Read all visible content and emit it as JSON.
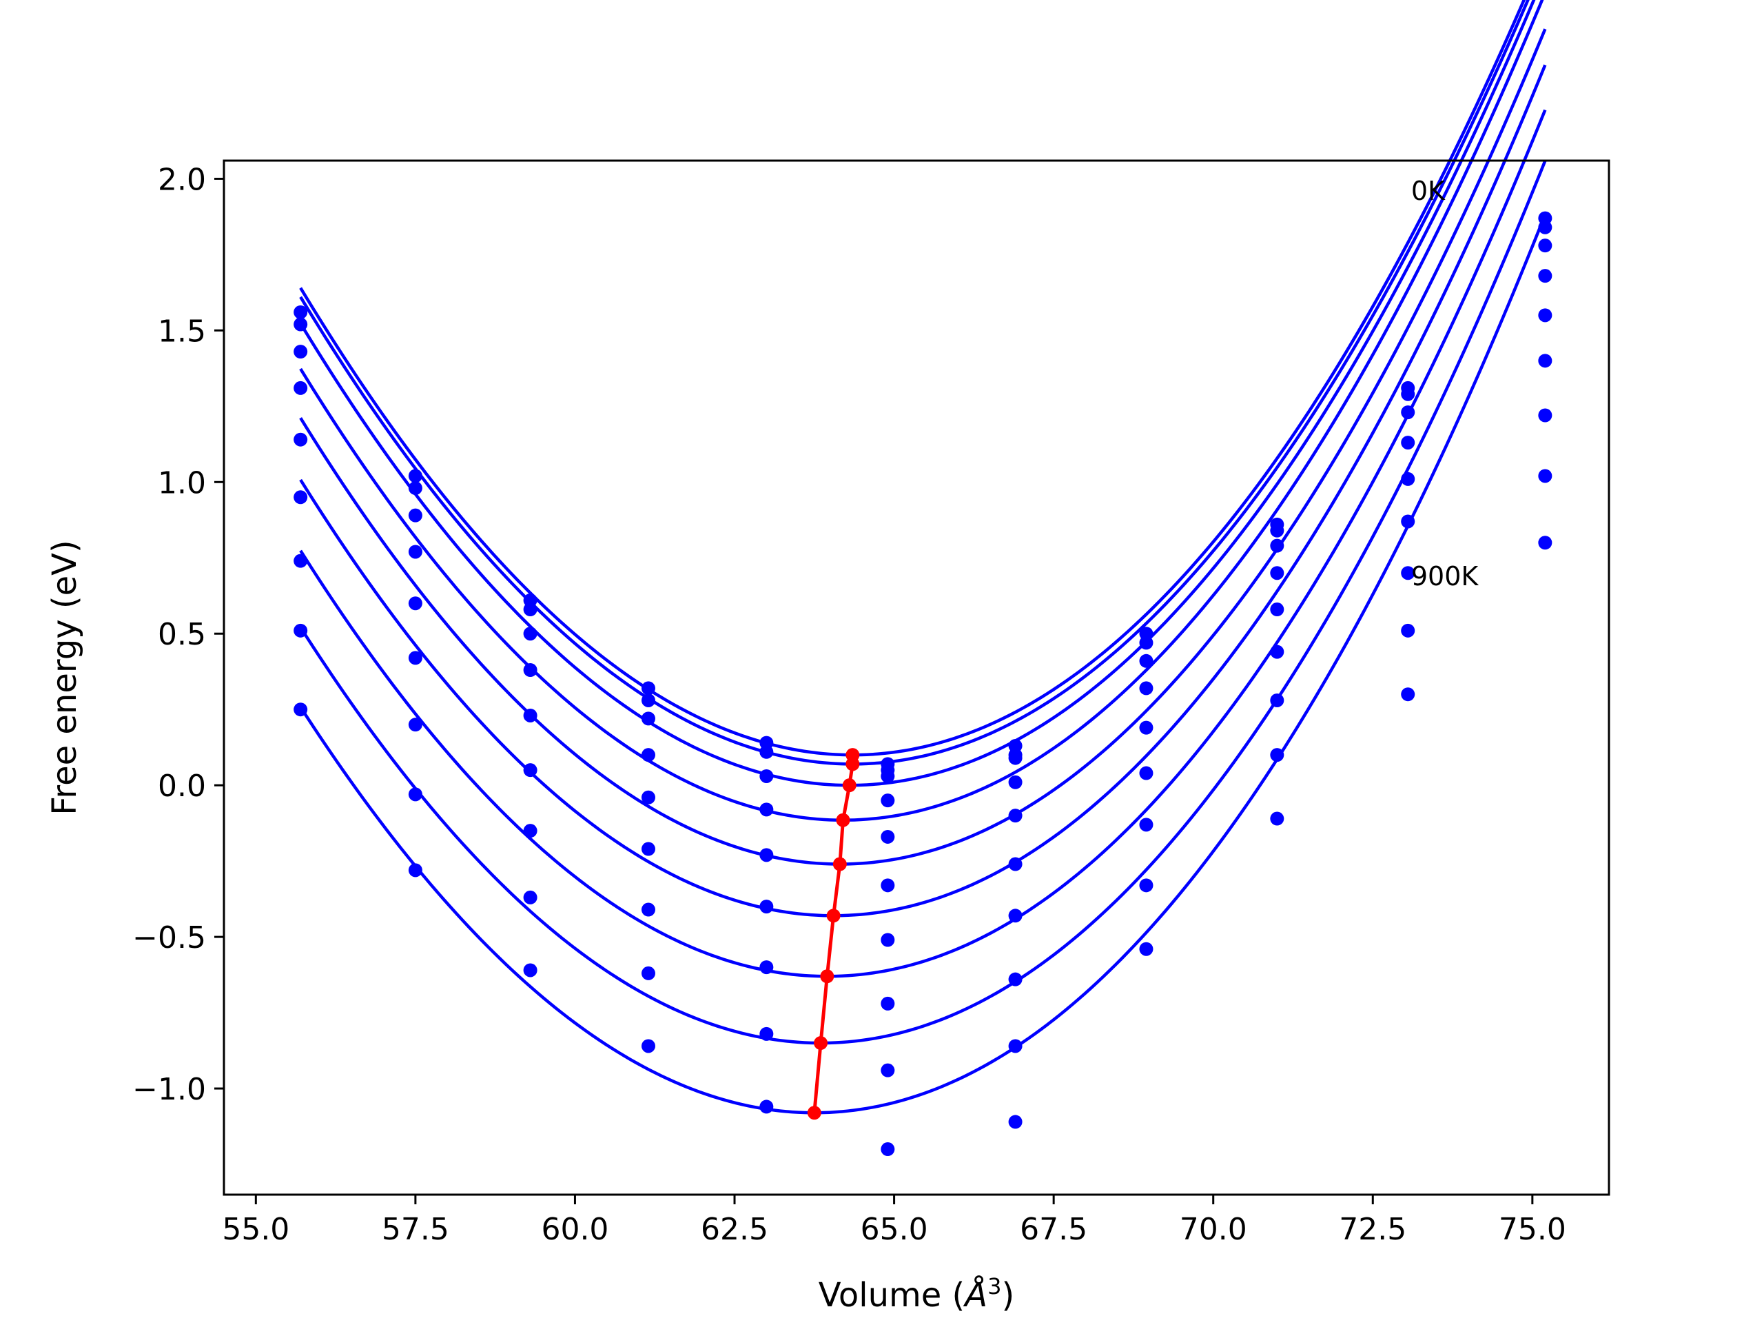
{
  "chart_data": {
    "type": "scatter",
    "title": "",
    "xlabel_main": "Volume (",
    "xlabel_unit": "Å",
    "xlabel_exp": "3",
    "xlabel_close": ")",
    "ylabel": "Free energy (eV)",
    "xlim": [
      54.5,
      76.2
    ],
    "ylim": [
      -1.35,
      2.06
    ],
    "xticks": [
      55.0,
      57.5,
      60.0,
      62.5,
      65.0,
      67.5,
      70.0,
      72.5,
      75.0
    ],
    "xtick_labels": [
      "55.0",
      "57.5",
      "60.0",
      "62.5",
      "65.0",
      "67.5",
      "70.0",
      "72.5",
      "75.0"
    ],
    "yticks": [
      -1.0,
      -0.5,
      0.0,
      0.5,
      1.0,
      1.5,
      2.0
    ],
    "ytick_labels": [
      "−1.0",
      "−0.5",
      "0.0",
      "0.5",
      "1.0",
      "1.5",
      "2.0"
    ],
    "grid": false,
    "legend": "none",
    "colors": {
      "series": "#0000ff",
      "minima": "#ff0000"
    },
    "annotations": [
      {
        "text": "0K",
        "x": 73.1,
        "y": 1.93
      },
      {
        "text": "900K",
        "x": 73.1,
        "y": 0.66
      }
    ],
    "volumes": [
      55.7,
      57.5,
      59.3,
      61.15,
      63.0,
      64.9,
      66.9,
      68.95,
      71.0,
      73.05,
      75.2
    ],
    "fit_curves": [
      {
        "min_x": 64.35,
        "min_y": 0.1,
        "k": 0.02145,
        "c": 0.0001
      },
      {
        "min_x": 64.35,
        "min_y": 0.07,
        "k": 0.02145,
        "c": 0.0001
      },
      {
        "min_x": 64.3,
        "min_y": 0.0,
        "k": 0.02145,
        "c": 0.0001
      },
      {
        "min_x": 64.2,
        "min_y": -0.115,
        "k": 0.02145,
        "c": 0.0001
      },
      {
        "min_x": 64.15,
        "min_y": -0.26,
        "k": 0.02145,
        "c": 0.0001
      },
      {
        "min_x": 64.05,
        "min_y": -0.43,
        "k": 0.02145,
        "c": 0.0001
      },
      {
        "min_x": 63.95,
        "min_y": -0.63,
        "k": 0.02145,
        "c": 0.0001
      },
      {
        "min_x": 63.85,
        "min_y": -0.85,
        "k": 0.02145,
        "c": 0.0001
      },
      {
        "min_x": 63.75,
        "min_y": -1.08,
        "k": 0.02145,
        "c": 0.0001
      }
    ],
    "series": [
      {
        "values": [
          [
            55.7,
            1.56
          ],
          [
            57.5,
            1.02
          ],
          [
            59.3,
            0.61
          ],
          [
            61.15,
            0.32
          ],
          [
            63.0,
            0.14
          ],
          [
            64.9,
            0.07
          ],
          [
            66.9,
            0.13
          ],
          [
            68.95,
            0.5
          ],
          [
            71.0,
            0.86
          ],
          [
            73.05,
            1.31
          ],
          [
            75.2,
            1.87
          ]
        ]
      },
      {
        "values": [
          [
            55.7,
            1.52
          ],
          [
            57.5,
            0.98
          ],
          [
            59.3,
            0.58
          ],
          [
            61.15,
            0.28
          ],
          [
            63.0,
            0.11
          ],
          [
            64.9,
            0.05
          ],
          [
            66.9,
            0.1
          ],
          [
            68.95,
            0.47
          ],
          [
            71.0,
            0.84
          ],
          [
            73.05,
            1.29
          ],
          [
            75.2,
            1.84
          ]
        ]
      },
      {
        "values": [
          [
            55.7,
            1.43
          ],
          [
            57.5,
            0.89
          ],
          [
            59.3,
            0.5
          ],
          [
            61.15,
            0.22
          ],
          [
            63.0,
            0.03
          ],
          [
            64.9,
            0.03
          ],
          [
            66.9,
            0.09
          ],
          [
            68.95,
            0.41
          ],
          [
            71.0,
            0.79
          ],
          [
            73.05,
            1.23
          ],
          [
            75.2,
            1.78
          ]
        ]
      },
      {
        "values": [
          [
            55.7,
            1.31
          ],
          [
            57.5,
            0.77
          ],
          [
            59.3,
            0.38
          ],
          [
            61.15,
            0.1
          ],
          [
            63.0,
            -0.08
          ],
          [
            64.9,
            -0.05
          ],
          [
            66.9,
            0.01
          ],
          [
            68.95,
            0.32
          ],
          [
            71.0,
            0.7
          ],
          [
            73.05,
            1.13
          ],
          [
            75.2,
            1.68
          ]
        ]
      },
      {
        "values": [
          [
            55.7,
            1.14
          ],
          [
            57.5,
            0.6
          ],
          [
            59.3,
            0.23
          ],
          [
            61.15,
            -0.04
          ],
          [
            63.0,
            -0.23
          ],
          [
            64.9,
            -0.17
          ],
          [
            66.9,
            -0.1
          ],
          [
            68.95,
            0.19
          ],
          [
            71.0,
            0.58
          ],
          [
            73.05,
            1.01
          ],
          [
            75.2,
            1.55
          ]
        ]
      },
      {
        "values": [
          [
            55.7,
            0.95
          ],
          [
            57.5,
            0.42
          ],
          [
            59.3,
            0.05
          ],
          [
            61.15,
            -0.21
          ],
          [
            63.0,
            -0.4
          ],
          [
            64.9,
            -0.33
          ],
          [
            66.9,
            -0.26
          ],
          [
            68.95,
            0.04
          ],
          [
            71.0,
            0.44
          ],
          [
            73.05,
            0.87
          ],
          [
            75.2,
            1.4
          ]
        ]
      },
      {
        "values": [
          [
            55.7,
            0.74
          ],
          [
            57.5,
            0.2
          ],
          [
            59.3,
            -0.15
          ],
          [
            61.15,
            -0.41
          ],
          [
            63.0,
            -0.6
          ],
          [
            64.9,
            -0.51
          ],
          [
            66.9,
            -0.43
          ],
          [
            68.95,
            -0.13
          ],
          [
            71.0,
            0.28
          ],
          [
            73.05,
            0.7
          ],
          [
            75.2,
            1.22
          ]
        ]
      },
      {
        "values": [
          [
            55.7,
            0.51
          ],
          [
            57.5,
            -0.03
          ],
          [
            59.3,
            -0.37
          ],
          [
            61.15,
            -0.62
          ],
          [
            63.0,
            -0.82
          ],
          [
            64.9,
            -0.72
          ],
          [
            66.9,
            -0.64
          ],
          [
            68.95,
            -0.33
          ],
          [
            71.0,
            0.1
          ],
          [
            73.05,
            0.51
          ],
          [
            75.2,
            1.02
          ]
        ]
      },
      {
        "values": [
          [
            55.7,
            0.25
          ],
          [
            57.5,
            -0.28
          ],
          [
            59.3,
            -0.61
          ],
          [
            61.15,
            -0.86
          ],
          [
            63.0,
            -1.06
          ],
          [
            64.9,
            -0.94
          ],
          [
            66.9,
            -0.86
          ],
          [
            68.95,
            -0.54
          ],
          [
            71.0,
            -0.11
          ],
          [
            73.05,
            0.3
          ],
          [
            75.2,
            0.8
          ]
        ]
      },
      {
        "values": [
          [
            64.9,
            -1.2
          ],
          [
            66.9,
            -1.11
          ]
        ]
      }
    ],
    "minima_series": {
      "values": [
        [
          64.35,
          0.1
        ],
        [
          64.35,
          0.07
        ],
        [
          64.3,
          0.0
        ],
        [
          64.2,
          -0.115
        ],
        [
          64.15,
          -0.26
        ],
        [
          64.05,
          -0.43
        ],
        [
          63.95,
          -0.63
        ],
        [
          63.85,
          -0.85
        ],
        [
          63.75,
          -1.08
        ]
      ]
    }
  }
}
